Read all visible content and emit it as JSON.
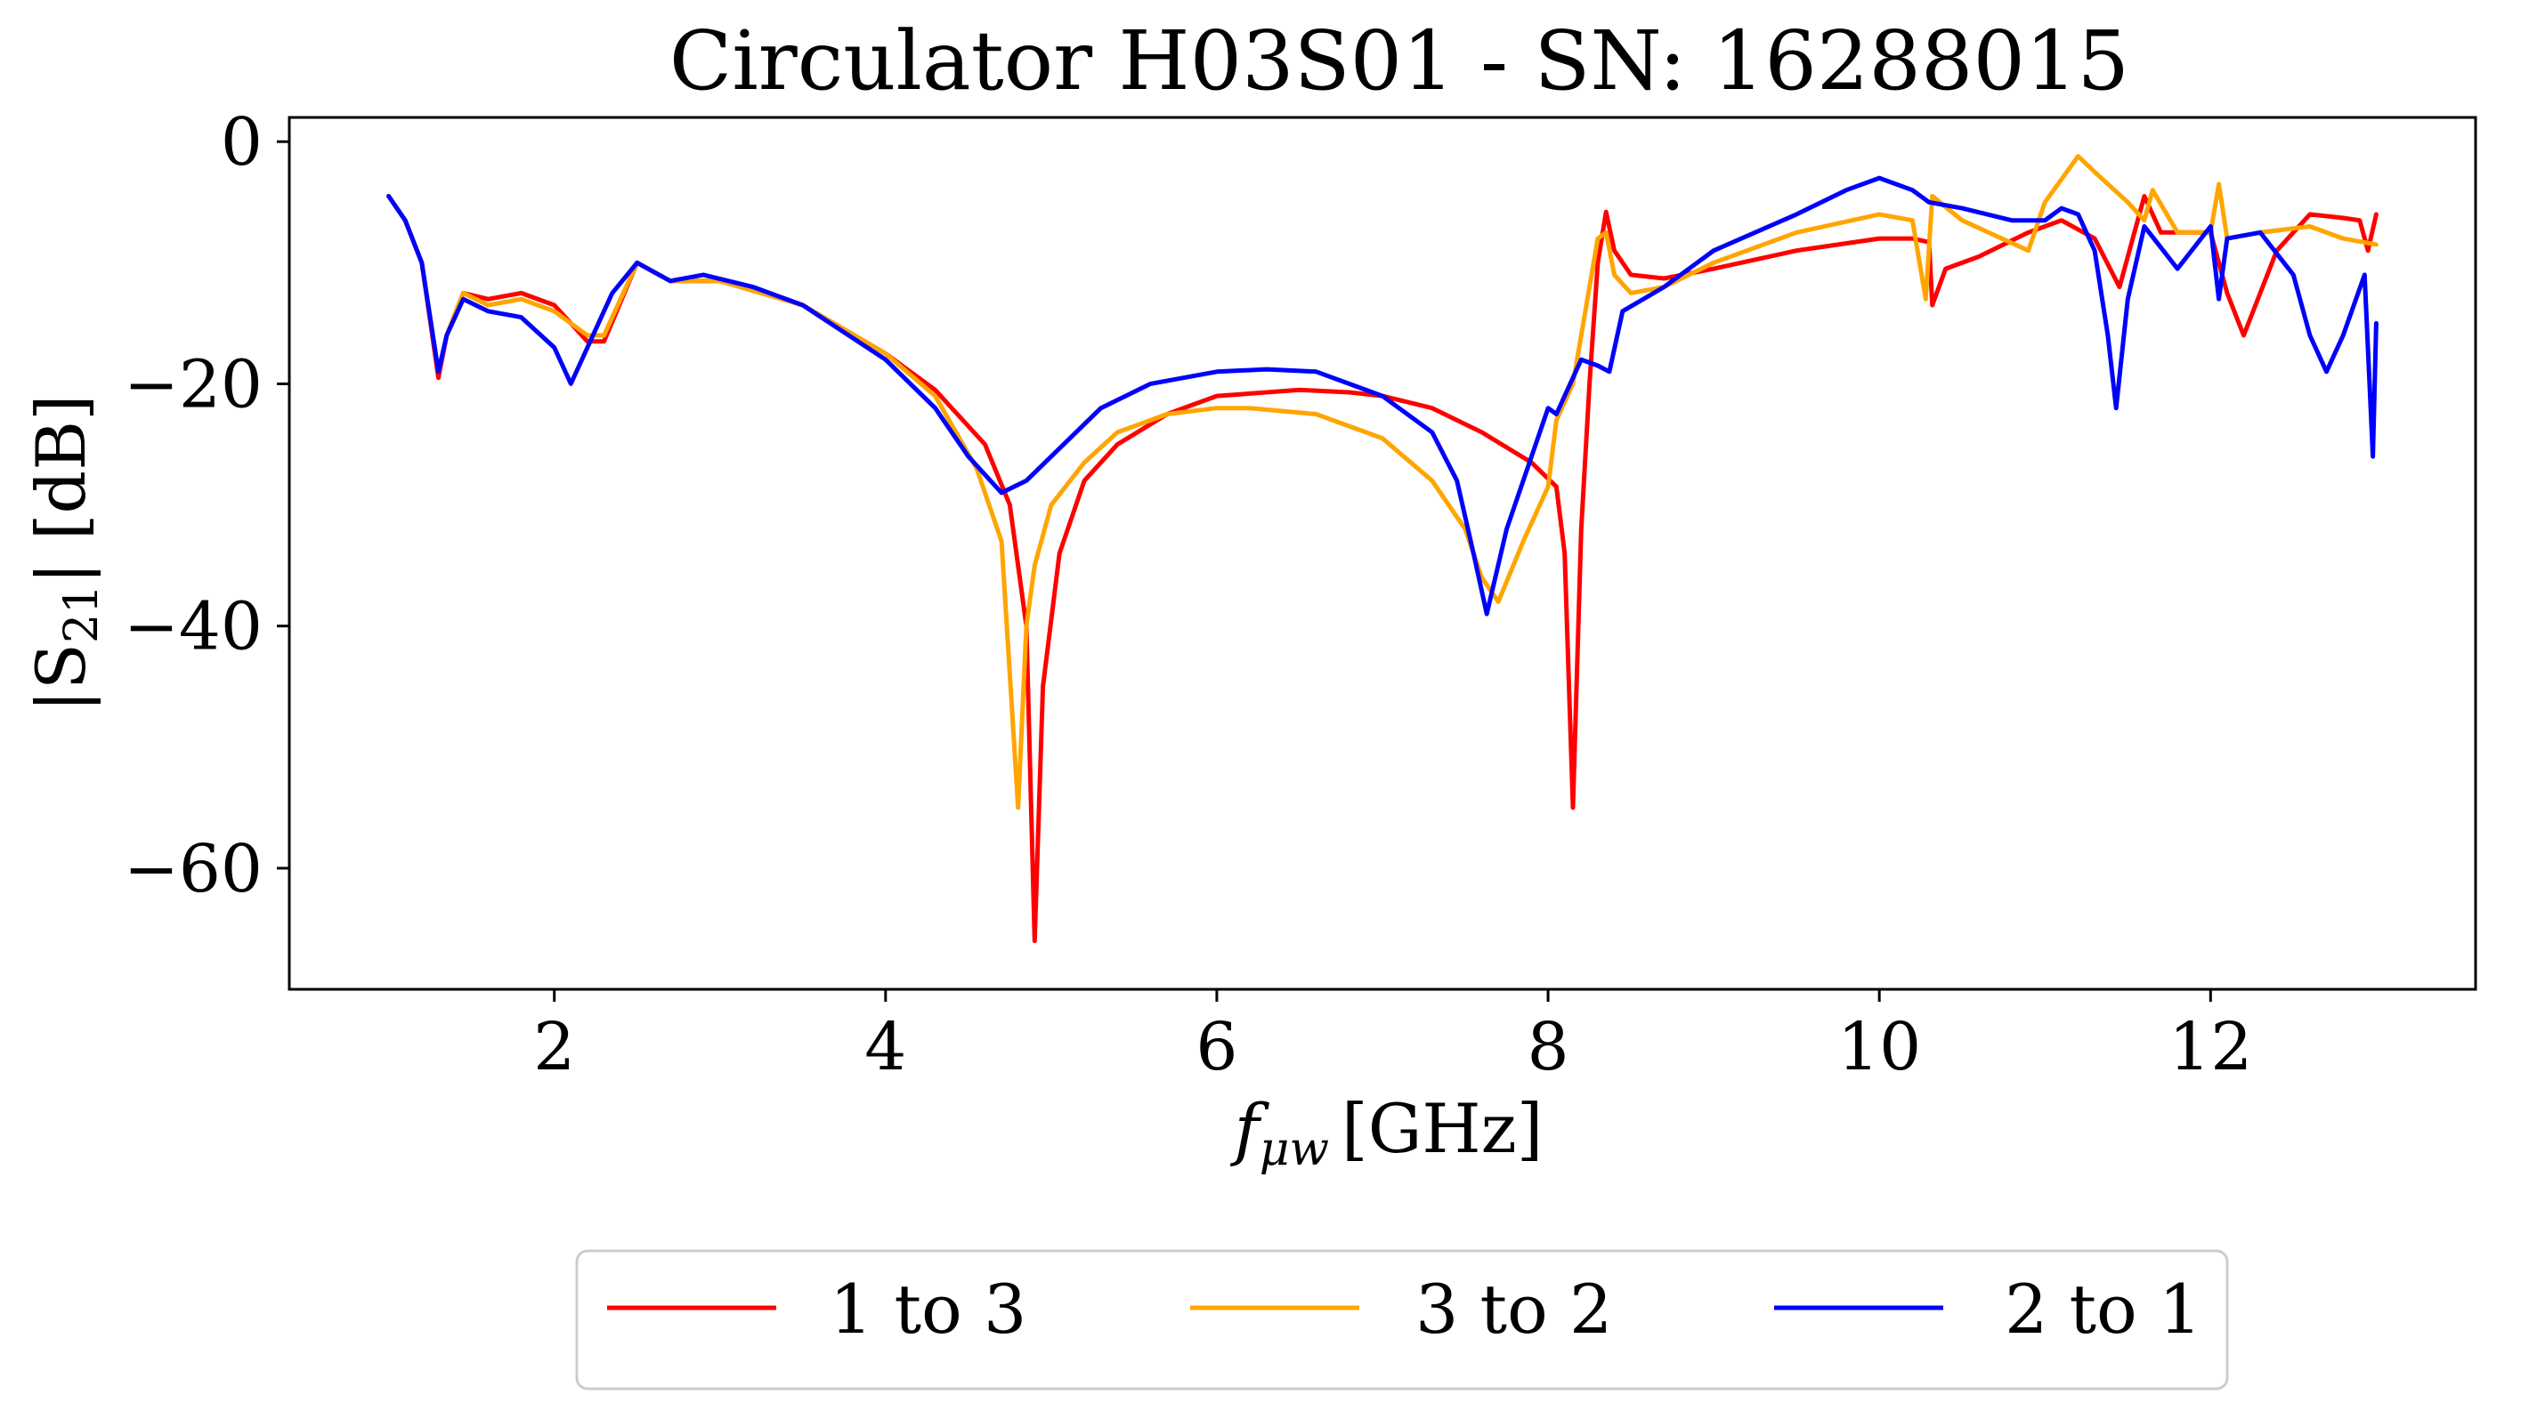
{
  "chart_data": {
    "type": "line",
    "title": "Circulator H03S01 - SN: 16288015",
    "xlabel_main": "f",
    "xlabel_sub": "μw",
    "xlabel_unit": "[GHz]",
    "ylabel_main": "|S",
    "ylabel_sub": "21",
    "ylabel_unit": "| [dB]",
    "xlim": [
      0.4,
      13.6
    ],
    "ylim": [
      -70,
      2
    ],
    "xticks": [
      2,
      4,
      6,
      8,
      10,
      12
    ],
    "xtick_labels": [
      "2",
      "4",
      "6",
      "8",
      "10",
      "12"
    ],
    "yticks": [
      0,
      -20,
      -40,
      -60
    ],
    "ytick_labels": [
      "0",
      "−20",
      "−40",
      "−60"
    ],
    "legend_placement": "bottom-center",
    "series": [
      {
        "name": "1 to 3",
        "color": "#ff0000",
        "x": [
          1.0,
          1.1,
          1.2,
          1.3,
          1.35,
          1.45,
          1.6,
          1.8,
          2.0,
          2.2,
          2.3,
          2.5,
          2.7,
          3.0,
          3.5,
          4.0,
          4.3,
          4.6,
          4.75,
          4.85,
          4.9,
          4.95,
          5.05,
          5.2,
          5.4,
          5.7,
          6.0,
          6.5,
          6.8,
          7.0,
          7.3,
          7.6,
          7.9,
          8.05,
          8.1,
          8.15,
          8.2,
          8.25,
          8.3,
          8.35,
          8.4,
          8.5,
          8.7,
          9.0,
          9.5,
          10.0,
          10.2,
          10.3,
          10.32,
          10.4,
          10.6,
          10.9,
          11.1,
          11.3,
          11.45,
          11.6,
          11.7,
          11.85,
          12.0,
          12.1,
          12.2,
          12.4,
          12.6,
          12.8,
          12.9,
          12.95,
          13.0
        ],
        "y": [
          -4.5,
          -6.5,
          -10,
          -19.5,
          -16,
          -12.5,
          -13,
          -12.5,
          -13.5,
          -16.5,
          -16.5,
          -10,
          -11.5,
          -11.5,
          -13.5,
          -17.5,
          -20.5,
          -25,
          -30,
          -40,
          -66,
          -45,
          -34,
          -28,
          -25,
          -22.5,
          -21,
          -20.5,
          -20.7,
          -21,
          -22,
          -24,
          -26.5,
          -28.5,
          -34,
          -55,
          -32,
          -20,
          -10,
          -5.8,
          -9,
          -11,
          -11.3,
          -10.5,
          -9,
          -8,
          -8,
          -8.3,
          -13.5,
          -10.5,
          -9.5,
          -7.5,
          -6.5,
          -8,
          -12,
          -4.5,
          -7.5,
          -7.5,
          -7.5,
          -12.5,
          -16,
          -9,
          -6,
          -6.3,
          -6.5,
          -9,
          -6
        ]
      },
      {
        "name": "3 to 2",
        "color": "#ffa500",
        "x": [
          1.0,
          1.1,
          1.2,
          1.3,
          1.35,
          1.45,
          1.6,
          1.8,
          2.0,
          2.2,
          2.3,
          2.5,
          2.7,
          3.0,
          3.5,
          4.0,
          4.3,
          4.55,
          4.7,
          4.8,
          4.85,
          4.9,
          5.0,
          5.2,
          5.4,
          5.7,
          6.0,
          6.2,
          6.6,
          7.0,
          7.3,
          7.5,
          7.6,
          7.7,
          7.85,
          8.0,
          8.05,
          8.15,
          8.3,
          8.35,
          8.4,
          8.5,
          8.7,
          9.0,
          9.5,
          10.0,
          10.2,
          10.28,
          10.32,
          10.5,
          10.9,
          11.0,
          11.2,
          11.3,
          11.5,
          11.6,
          11.65,
          11.8,
          12.0,
          12.05,
          12.1,
          12.3,
          12.6,
          12.8,
          13.0
        ],
        "y": [
          -4.5,
          -6.5,
          -10,
          -19,
          -16,
          -12.5,
          -13.5,
          -13,
          -14,
          -16,
          -16,
          -10,
          -11.5,
          -11.5,
          -13.5,
          -17.5,
          -21,
          -27,
          -33,
          -55,
          -40,
          -35,
          -30,
          -26.5,
          -24,
          -22.5,
          -22,
          -22,
          -22.5,
          -24.5,
          -28,
          -32,
          -36,
          -38,
          -33,
          -28.5,
          -23,
          -20,
          -8,
          -7.5,
          -11,
          -12.5,
          -12,
          -10,
          -7.5,
          -6,
          -6.5,
          -13,
          -4.5,
          -6.5,
          -9,
          -5,
          -1.2,
          -2.5,
          -5,
          -6.5,
          -4,
          -7.5,
          -7.5,
          -3.5,
          -8,
          -7.5,
          -7,
          -8,
          -8.5
        ]
      },
      {
        "name": "2 to 1",
        "color": "#0000ff",
        "x": [
          1.0,
          1.1,
          1.2,
          1.3,
          1.35,
          1.45,
          1.6,
          1.8,
          2.0,
          2.1,
          2.2,
          2.35,
          2.5,
          2.7,
          2.9,
          3.2,
          3.5,
          4.0,
          4.3,
          4.5,
          4.7,
          4.85,
          5.0,
          5.3,
          5.6,
          6.0,
          6.3,
          6.6,
          7.0,
          7.3,
          7.45,
          7.55,
          7.63,
          7.75,
          7.9,
          8.0,
          8.05,
          8.2,
          8.3,
          8.37,
          8.45,
          8.7,
          9.0,
          9.5,
          9.8,
          10.0,
          10.2,
          10.3,
          10.5,
          10.8,
          11.0,
          11.1,
          11.2,
          11.3,
          11.38,
          11.43,
          11.5,
          11.6,
          11.8,
          12.0,
          12.05,
          12.1,
          12.3,
          12.5,
          12.6,
          12.7,
          12.8,
          12.93,
          12.96,
          12.98,
          13.0
        ],
        "y": [
          -4.5,
          -6.5,
          -10,
          -19,
          -16,
          -13,
          -14,
          -14.5,
          -17,
          -20,
          -17,
          -12.5,
          -10,
          -11.5,
          -11,
          -12,
          -13.5,
          -18,
          -22,
          -26,
          -29,
          -28,
          -26,
          -22,
          -20,
          -19,
          -18.8,
          -19,
          -21,
          -24,
          -28,
          -34,
          -39,
          -32,
          -26,
          -22,
          -22.5,
          -18,
          -18.5,
          -19,
          -14,
          -12,
          -9,
          -6,
          -4,
          -3,
          -4,
          -5,
          -5.5,
          -6.5,
          -6.5,
          -5.5,
          -6,
          -9,
          -16,
          -22,
          -13,
          -7,
          -10.5,
          -7,
          -13,
          -8,
          -7.5,
          -11,
          -16,
          -19,
          -16,
          -11,
          -20,
          -26,
          -15
        ]
      }
    ]
  }
}
